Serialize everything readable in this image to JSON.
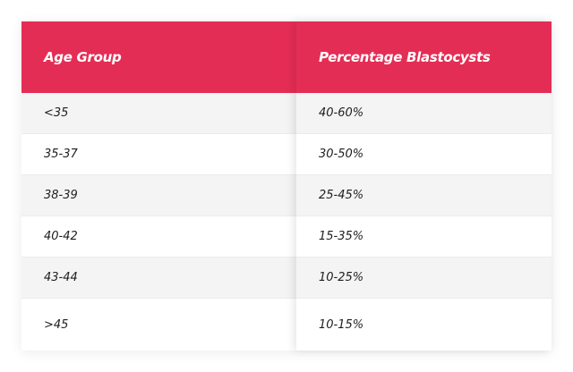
{
  "table": {
    "headers": [
      "Age Group",
      "Percentage Blastocysts"
    ],
    "rows": [
      [
        "<35",
        "40-60%"
      ],
      [
        "35-37",
        "30-50%"
      ],
      [
        "38-39",
        "25-45%"
      ],
      [
        "40-42",
        "15-35%"
      ],
      [
        "43-44",
        "10-25%"
      ],
      [
        ">45",
        "10-15%"
      ]
    ],
    "colors": {
      "header_bg": "#e42d55",
      "header_text": "#ffffff",
      "row_shade": "#f4f4f4"
    }
  }
}
